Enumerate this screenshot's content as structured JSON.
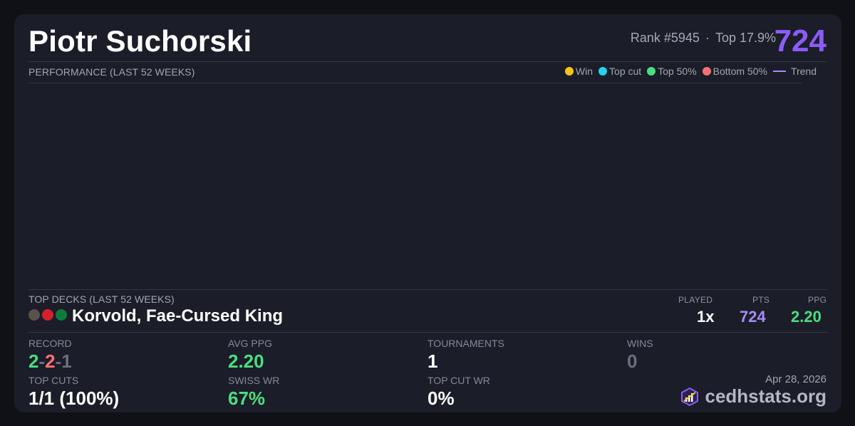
{
  "player": {
    "name": "Piotr Suchorski",
    "rank": "Rank #5945",
    "separator": "·",
    "top_percent": "Top 17.9%",
    "score": "724"
  },
  "performance": {
    "label": "PERFORMANCE (LAST 52 WEEKS)",
    "legend": [
      {
        "label": "Win",
        "color": "#f5c518"
      },
      {
        "label": "Top cut",
        "color": "#22d3ee"
      },
      {
        "label": "Top 50%",
        "color": "#4ade80"
      },
      {
        "label": "Bottom 50%",
        "color": "#f87171"
      },
      {
        "label": "Trend",
        "color": "#a78bfa"
      }
    ]
  },
  "chart_data": {
    "type": "scatter",
    "title": "",
    "xlabel": "",
    "ylabel": "",
    "series": []
  },
  "top_decks": {
    "label": "TOP DECKS (LAST 52 WEEKS)",
    "columns": {
      "played": "PLAYED",
      "pts": "PTS",
      "ppg": "PPG"
    },
    "decks": [
      {
        "name": "Korvold, Fae-Cursed King",
        "color_identity": [
          "#5a5148",
          "#d3202a",
          "#0f7a3d"
        ],
        "played": "1x",
        "pts": "724",
        "ppg": "2.20"
      }
    ]
  },
  "stats": {
    "record_label": "RECORD",
    "record": {
      "wins": "2",
      "losses": "2",
      "draws": "1",
      "dash": "-"
    },
    "avg_ppg_label": "AVG PPG",
    "avg_ppg": "2.20",
    "tournaments_label": "TOURNAMENTS",
    "tournaments": "1",
    "wins_label": "WINS",
    "wins": "0",
    "top_cuts_label": "TOP CUTS",
    "top_cuts": "1/1 (100%)",
    "swiss_wr_label": "SWISS WR",
    "swiss_wr": "67%",
    "top_cut_wr_label": "TOP CUT WR",
    "top_cut_wr": "0%"
  },
  "footer": {
    "date": "Apr 28, 2026",
    "brand": "cedhstats.org"
  },
  "colors": {
    "accent": "#8b5cf6",
    "pts": "#a78bfa",
    "green": "#4ade80",
    "red": "#f87171",
    "muted": "#6b6f7e"
  }
}
